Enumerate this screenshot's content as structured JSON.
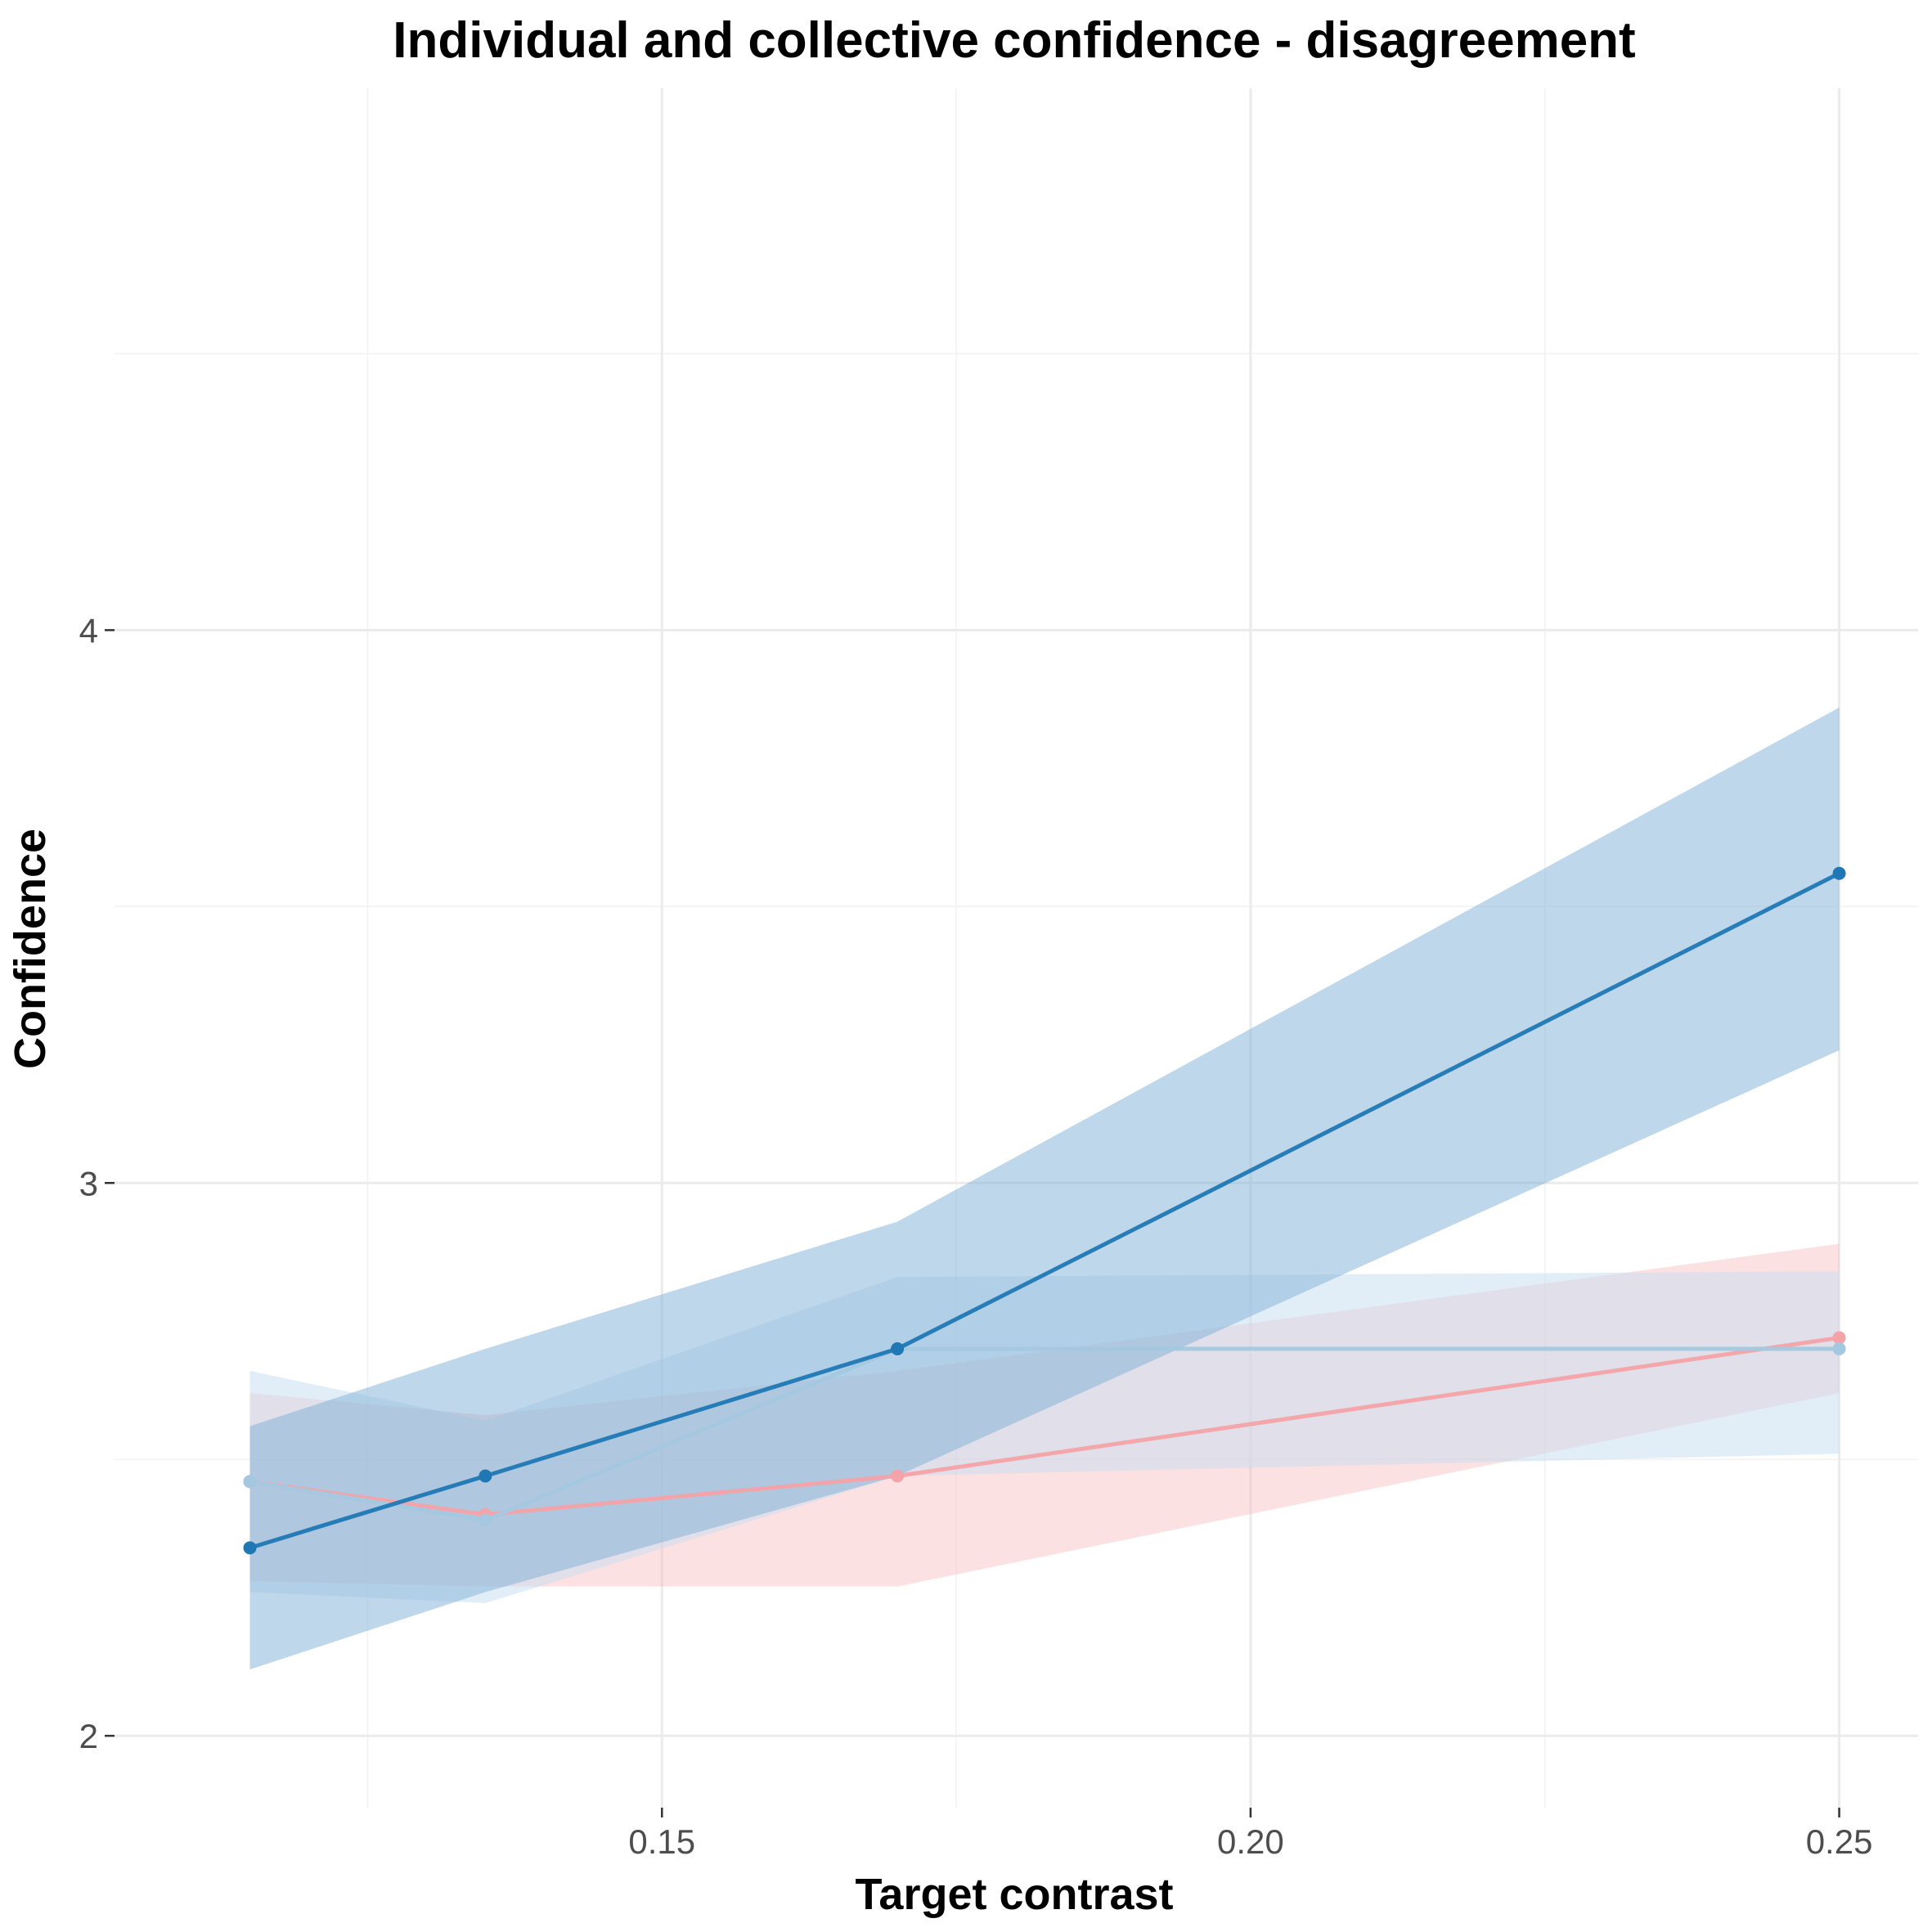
{
  "chart_data": {
    "type": "line",
    "title": "Individual and collective confidence - disagreement",
    "xlabel": "Target contrast",
    "ylabel": "Confidence",
    "xlim": [
      0.1035,
      0.2567
    ],
    "ylim": [
      1.87,
      4.98
    ],
    "x_ticks": [
      {
        "value": 0.15,
        "label": "0.15"
      },
      {
        "value": 0.2,
        "label": "0.20"
      },
      {
        "value": 0.25,
        "label": "0.25"
      }
    ],
    "y_ticks": [
      {
        "value": 2,
        "label": "2"
      },
      {
        "value": 3,
        "label": "3"
      },
      {
        "value": 4,
        "label": "4"
      }
    ],
    "x_minor": [
      0.125,
      0.175,
      0.225
    ],
    "y_minor": [
      2.5,
      3.5,
      4.5
    ],
    "grid": true,
    "legend": "none",
    "series": [
      {
        "x": [
          0.115,
          0.135,
          0.17,
          0.25
        ],
        "y": [
          2.46,
          2.4,
          2.47,
          2.72
        ],
        "lower": [
          2.28,
          2.27,
          2.27,
          2.62
        ],
        "upper": [
          2.62,
          2.58,
          2.66,
          2.89
        ],
        "color": "#f4a3a8",
        "band_color": "#f8b8bd",
        "band_opacity": 0.42
      },
      {
        "x": [
          0.115,
          0.135,
          0.17,
          0.25
        ],
        "y": [
          2.46,
          2.39,
          2.7,
          2.7
        ],
        "lower": [
          2.26,
          2.24,
          2.47,
          2.51
        ],
        "upper": [
          2.66,
          2.57,
          2.83,
          2.84
        ],
        "color": "#a4c8e0",
        "band_color": "#c6def0",
        "band_opacity": 0.5
      },
      {
        "x": [
          0.115,
          0.135,
          0.17,
          0.25
        ],
        "y": [
          2.34,
          2.47,
          2.7,
          3.56
        ],
        "lower": [
          2.12,
          2.26,
          2.47,
          3.24
        ],
        "upper": [
          2.56,
          2.7,
          2.93,
          3.86
        ],
        "color": "#1f78b4",
        "band_color": "#7fb0d8",
        "band_opacity": 0.5
      }
    ]
  }
}
